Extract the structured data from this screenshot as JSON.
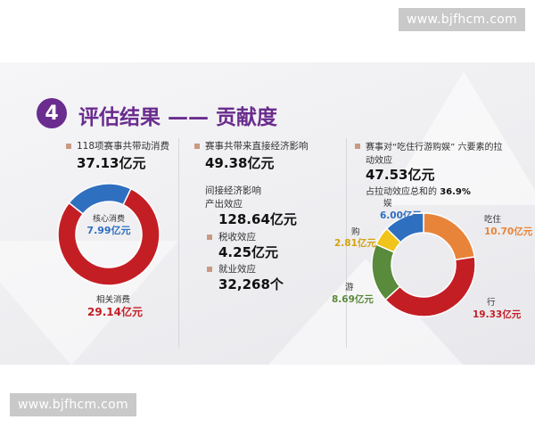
{
  "watermark": "www.bjfhcm.com",
  "section": {
    "number": "4",
    "title": "评估结果 —— 贡献度"
  },
  "left": {
    "label": "118项赛事共带动消费",
    "total": "37.13亿元",
    "core_label": "核心消费",
    "core_value": "7.99亿元",
    "related_label": "相关消费",
    "related_value": "29.14亿元"
  },
  "middle": {
    "label": "赛事共带来直接经济影响",
    "direct": "49.38亿元",
    "indirect_label": "间接经济影响",
    "output_label": "产出效应",
    "output_value": "128.64亿元",
    "tax_label": "税收效应",
    "tax_value": "4.25亿元",
    "jobs_label": "就业效应",
    "jobs_value": "32,268个"
  },
  "right": {
    "label_line1": "赛事对“吃住行游购娱” 六要素的拉",
    "label_line2": "动效应",
    "total": "47.53亿元",
    "share_prefix": "占拉动效应总和的",
    "share_value": "36.9%"
  },
  "colors": {
    "accent": "#6a2c8e",
    "core": "#2f6fc0",
    "related": "#c41e25",
    "eat_live": "#e8843a",
    "travel": "#c41e25",
    "tour": "#5a8a3c",
    "shopping": "#f0c419",
    "entertainment": "#2f6fc0"
  },
  "chart_data": [
    {
      "type": "pie",
      "title": "",
      "categories": [
        "核心消费",
        "相关消费"
      ],
      "values": [
        7.99,
        29.14
      ],
      "value_labels": [
        "7.99亿元",
        "29.14亿元"
      ]
    },
    {
      "type": "pie",
      "title": "",
      "categories": [
        "吃住",
        "行",
        "游",
        "购",
        "娱"
      ],
      "values": [
        10.7,
        19.33,
        8.69,
        2.81,
        6.0
      ],
      "value_labels": [
        "10.70亿元",
        "19.33亿元",
        "8.69亿元",
        "2.81亿元",
        "6.00亿元"
      ]
    }
  ]
}
